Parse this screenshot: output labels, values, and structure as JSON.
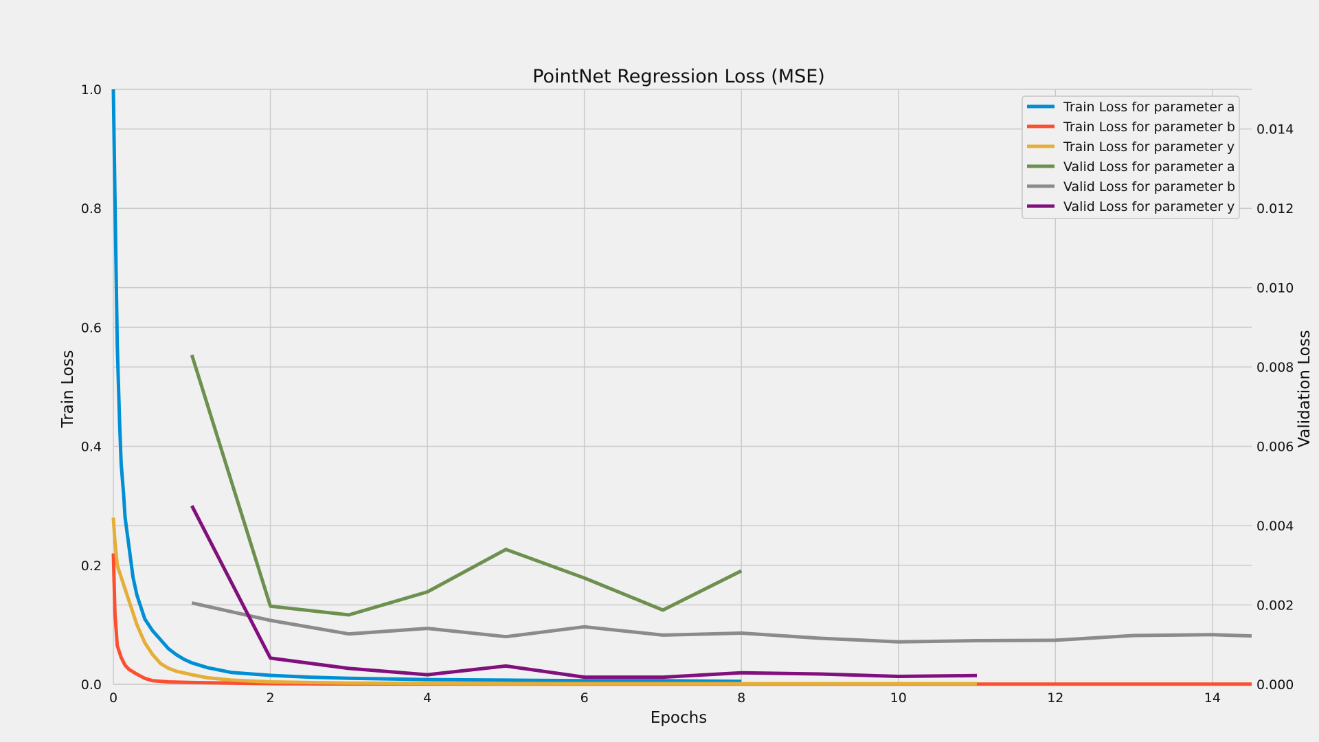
{
  "chart_data": {
    "type": "line",
    "title": "PointNet Regression Loss (MSE)",
    "xlabel": "Epochs",
    "ylabel": "Train Loss",
    "y2label": "Validation Loss",
    "xlim": [
      0,
      14.5
    ],
    "ylim": [
      0,
      1.0
    ],
    "y2lim": [
      0,
      0.015
    ],
    "xticks": [
      0,
      2,
      4,
      6,
      8,
      10,
      12,
      14
    ],
    "yticks": [
      0.0,
      0.2,
      0.4,
      0.6,
      0.8,
      1.0
    ],
    "y2ticks": [
      0.0,
      0.002,
      0.004,
      0.006,
      0.008,
      0.01,
      0.012,
      0.014
    ],
    "xtick_labels": [
      "0",
      "2",
      "4",
      "6",
      "8",
      "10",
      "12",
      "14"
    ],
    "ytick_labels": [
      "0.0",
      "0.2",
      "0.4",
      "0.6",
      "0.8",
      "1.0"
    ],
    "y2tick_labels": [
      "0.000",
      "0.002",
      "0.004",
      "0.006",
      "0.008",
      "0.010",
      "0.012",
      "0.014"
    ],
    "grid": true,
    "legend_position": "top-right",
    "train_series": [
      {
        "name": "Train Loss for parameter a",
        "color": "#008fd5",
        "x": [
          0,
          0.02,
          0.05,
          0.08,
          0.1,
          0.13,
          0.15,
          0.2,
          0.25,
          0.3,
          0.35,
          0.4,
          0.5,
          0.6,
          0.7,
          0.8,
          0.9,
          1.0,
          1.2,
          1.5,
          2.0,
          2.5,
          3.0,
          4.0,
          5.0,
          6.0,
          7.0,
          8.0
        ],
        "y": [
          1.0,
          0.82,
          0.57,
          0.44,
          0.37,
          0.32,
          0.28,
          0.23,
          0.18,
          0.15,
          0.13,
          0.11,
          0.09,
          0.075,
          0.06,
          0.05,
          0.042,
          0.036,
          0.028,
          0.02,
          0.015,
          0.012,
          0.01,
          0.008,
          0.007,
          0.006,
          0.006,
          0.005
        ]
      },
      {
        "name": "Train Loss for parameter b",
        "color": "#fc4f30",
        "x": [
          0,
          0.02,
          0.05,
          0.1,
          0.15,
          0.2,
          0.3,
          0.4,
          0.5,
          0.7,
          1.0,
          1.5,
          2.0,
          3.0,
          5.0,
          8.0,
          11.0,
          14.5
        ],
        "y": [
          0.22,
          0.12,
          0.065,
          0.045,
          0.032,
          0.025,
          0.017,
          0.01,
          0.006,
          0.004,
          0.003,
          0.002,
          0.001,
          0.0005,
          0.0003,
          0.0002,
          0.0002,
          0.0002
        ]
      },
      {
        "name": "Train Loss for parameter y",
        "color": "#e5ae38",
        "x": [
          0,
          0.02,
          0.05,
          0.1,
          0.15,
          0.2,
          0.3,
          0.4,
          0.5,
          0.6,
          0.7,
          0.8,
          1.0,
          1.2,
          1.5,
          2.0,
          3.0,
          5.0,
          8.0,
          11.0
        ],
        "y": [
          0.28,
          0.24,
          0.2,
          0.18,
          0.16,
          0.14,
          0.1,
          0.07,
          0.05,
          0.035,
          0.027,
          0.022,
          0.016,
          0.011,
          0.007,
          0.004,
          0.002,
          0.001,
          0.001,
          0.001
        ]
      }
    ],
    "valid_series": [
      {
        "name": "Valid Loss for parameter a",
        "color": "#6d904f",
        "x": [
          1,
          2,
          3,
          4,
          5,
          6,
          7,
          8
        ],
        "y": [
          0.0083,
          0.00197,
          0.00175,
          0.00233,
          0.0034,
          0.00268,
          0.00187,
          0.00286
        ]
      },
      {
        "name": "Valid Loss for parameter b",
        "color": "#8b8b8b",
        "x": [
          1,
          2,
          3,
          4,
          5,
          6,
          7,
          8,
          9,
          10,
          11,
          12,
          13,
          14,
          14.5
        ],
        "y": [
          0.00205,
          0.00161,
          0.00127,
          0.00141,
          0.0012,
          0.00145,
          0.00124,
          0.00129,
          0.00116,
          0.00107,
          0.0011,
          0.00111,
          0.00123,
          0.00125,
          0.00122
        ]
      },
      {
        "name": "Valid Loss for parameter y",
        "color": "#810f7c",
        "x": [
          1,
          2,
          3,
          4,
          5,
          6,
          7,
          8,
          9,
          10,
          11
        ],
        "y": [
          0.0045,
          0.00066,
          0.0004,
          0.00024,
          0.00046,
          0.00018,
          0.00018,
          0.00029,
          0.00026,
          0.0002,
          0.00022
        ]
      }
    ]
  }
}
